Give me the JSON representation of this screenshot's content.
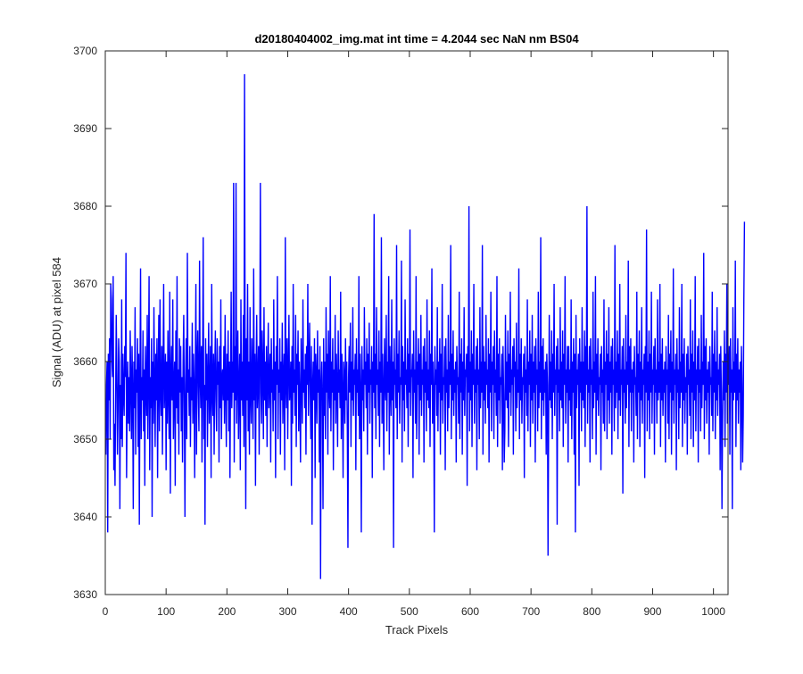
{
  "figure": {
    "background": "#ffffff"
  },
  "chart_data": {
    "type": "line",
    "title": "d20180404002_img.mat int time = 4.2044 sec  NaN nm BS04",
    "xlabel": "Track Pixels",
    "ylabel": "Signal (ADU) at pixel 584",
    "xlim": [
      0,
      1024
    ],
    "ylim": [
      3630,
      3700
    ],
    "xticks": [
      0,
      100,
      200,
      300,
      400,
      500,
      600,
      700,
      800,
      900,
      1000
    ],
    "yticks": [
      3630,
      3640,
      3650,
      3660,
      3670,
      3680,
      3690,
      3700
    ],
    "grid": false,
    "legend": "none",
    "series": [
      {
        "color": "#0000ff",
        "x_start": 1,
        "x_step": 1,
        "values": [
          3648,
          3657,
          3660,
          3638,
          3661,
          3655,
          3663,
          3650,
          3670,
          3668,
          3660,
          3658,
          3671,
          3646,
          3652,
          3644,
          3655,
          3666,
          3659,
          3648,
          3654,
          3663,
          3660,
          3641,
          3657,
          3650,
          3668,
          3649,
          3661,
          3656,
          3653,
          3662,
          3658,
          3674,
          3645,
          3655,
          3660,
          3652,
          3658,
          3651,
          3664,
          3657,
          3650,
          3662,
          3656,
          3641,
          3660,
          3654,
          3667,
          3648,
          3659,
          3656,
          3663,
          3649,
          3661,
          3639,
          3657,
          3672,
          3650,
          3658,
          3655,
          3664,
          3651,
          3659,
          3644,
          3662,
          3657,
          3653,
          3666,
          3650,
          3659,
          3671,
          3646,
          3658,
          3654,
          3663,
          3640,
          3660,
          3652,
          3667,
          3657,
          3649,
          3661,
          3655,
          3663,
          3645,
          3658,
          3666,
          3651,
          3668,
          3656,
          3653,
          3662,
          3648,
          3659,
          3670,
          3654,
          3657,
          3661,
          3646,
          3660,
          3652,
          3664,
          3656,
          3650,
          3669,
          3643,
          3658,
          3662,
          3655,
          3668,
          3650,
          3657,
          3660,
          3644,
          3664,
          3654,
          3671,
          3652,
          3659,
          3648,
          3663,
          3656,
          3662,
          3651,
          3658,
          3647,
          3660,
          3666,
          3654,
          3640,
          3657,
          3663,
          3650,
          3674,
          3656,
          3659,
          3653,
          3662,
          3649,
          3658,
          3655,
          3665,
          3652,
          3661,
          3657,
          3645,
          3659,
          3670,
          3648,
          3660,
          3664,
          3656,
          3651,
          3673,
          3658,
          3654,
          3662,
          3647,
          3659,
          3676,
          3650,
          3657,
          3639,
          3663,
          3655,
          3661,
          3649,
          3658,
          3665,
          3652,
          3657,
          3662,
          3645,
          3670,
          3656,
          3653,
          3661,
          3648,
          3659,
          3664,
          3655,
          3651,
          3663,
          3657,
          3660,
          3647,
          3662,
          3654,
          3668,
          3650,
          3658,
          3659,
          3655,
          3662,
          3652,
          3666,
          3657,
          3649,
          3661,
          3655,
          3664,
          3651,
          3660,
          3645,
          3658,
          3669,
          3654,
          3660,
          3656,
          3683,
          3647,
          3662,
          3655,
          3683,
          3652,
          3659,
          3664,
          3650,
          3657,
          3661,
          3646,
          3668,
          3655,
          3660,
          3653,
          3666,
          3649,
          3697,
          3658,
          3641,
          3663,
          3655,
          3670,
          3651,
          3660,
          3648,
          3667,
          3656,
          3652,
          3663,
          3658,
          3650,
          3672,
          3655,
          3661,
          3644,
          3659,
          3666,
          3654,
          3657,
          3662,
          3648,
          3660,
          3683,
          3656,
          3652,
          3664,
          3659,
          3650,
          3667,
          3655,
          3660,
          3653,
          3662,
          3649,
          3658,
          3665,
          3654,
          3658,
          3661,
          3647,
          3663,
          3656,
          3659,
          3651,
          3668,
          3655,
          3660,
          3645,
          3662,
          3657,
          3671,
          3650,
          3659,
          3656,
          3663,
          3648,
          3660,
          3655,
          3665,
          3652,
          3658,
          3661,
          3646,
          3676,
          3657,
          3654,
          3663,
          3650,
          3659,
          3666,
          3655,
          3657,
          3660,
          3644,
          3662,
          3652,
          3670,
          3656,
          3659,
          3653,
          3666,
          3649,
          3661,
          3657,
          3664,
          3651,
          3660,
          3655,
          3647,
          3663,
          3658,
          3652,
          3668,
          3656,
          3659,
          3654,
          3661,
          3648,
          3662,
          3657,
          3670,
          3653,
          3659,
          3665,
          3656,
          3650,
          3662,
          3639,
          3657,
          3660,
          3655,
          3663,
          3645,
          3661,
          3658,
          3652,
          3664,
          3656,
          3659,
          3647,
          3662,
          3632,
          3657,
          3660,
          3655,
          3641,
          3663,
          3653,
          3660,
          3650,
          3667,
          3656,
          3661,
          3648,
          3664,
          3657,
          3654,
          3671,
          3651,
          3660,
          3656,
          3663,
          3646,
          3659,
          3655,
          3666,
          3652,
          3661,
          3657,
          3649,
          3664,
          3656,
          3659,
          3654,
          3669,
          3650,
          3661,
          3656,
          3645,
          3660,
          3658,
          3652,
          3663,
          3655,
          3660,
          3651,
          3636,
          3658,
          3662,
          3656,
          3665,
          3649,
          3660,
          3655,
          3667,
          3653,
          3659,
          3657,
          3661,
          3646,
          3663,
          3656,
          3659,
          3653,
          3671,
          3650,
          3661,
          3656,
          3638,
          3662,
          3655,
          3659,
          3651,
          3667,
          3657,
          3660,
          3654,
          3663,
          3648,
          3661,
          3656,
          3665,
          3652,
          3659,
          3657,
          3662,
          3645,
          3660,
          3656,
          3679,
          3654,
          3661,
          3650,
          3667,
          3657,
          3659,
          3653,
          3664,
          3649,
          3660,
          3656,
          3676,
          3652,
          3661,
          3656,
          3646,
          3663,
          3658,
          3655,
          3666,
          3651,
          3660,
          3656,
          3671,
          3648,
          3662,
          3657,
          3653,
          3668,
          3655,
          3660,
          3636,
          3663,
          3657,
          3659,
          3654,
          3675,
          3650,
          3661,
          3656,
          3664,
          3652,
          3658,
          3657,
          3673,
          3647,
          3662,
          3655,
          3660,
          3651,
          3668,
          3657,
          3659,
          3654,
          3663,
          3649,
          3661,
          3656,
          3677,
          3653,
          3659,
          3658,
          3661,
          3645,
          3664,
          3656,
          3659,
          3652,
          3671,
          3650,
          3660,
          3657,
          3663,
          3648,
          3661,
          3655,
          3666,
          3653,
          3659,
          3657,
          3662,
          3647,
          3663,
          3656,
          3660,
          3651,
          3668,
          3655,
          3659,
          3654,
          3664,
          3649,
          3661,
          3657,
          3672,
          3652,
          3660,
          3656,
          3638,
          3662,
          3657,
          3659,
          3653,
          3667,
          3651,
          3660,
          3656,
          3663,
          3648,
          3661,
          3655,
          3670,
          3652,
          3658,
          3657,
          3662,
          3646,
          3663,
          3656,
          3659,
          3651,
          3666,
          3654,
          3660,
          3657,
          3675,
          3650,
          3661,
          3655,
          3664,
          3653,
          3659,
          3656,
          3660,
          3647,
          3662,
          3657,
          3658,
          3652,
          3669,
          3650,
          3661,
          3656,
          3663,
          3648,
          3660,
          3655,
          3667,
          3653,
          3659,
          3658,
          3661,
          3644,
          3662,
          3656,
          3680,
          3651,
          3660,
          3655,
          3664,
          3649,
          3661,
          3657,
          3670,
          3652,
          3659,
          3656,
          3662,
          3646,
          3663,
          3657,
          3659,
          3650,
          3667,
          3654,
          3660,
          3656,
          3675,
          3648,
          3662,
          3655,
          3660,
          3652,
          3666,
          3657,
          3659,
          3654,
          3663,
          3647,
          3661,
          3656,
          3669,
          3651,
          3660,
          3657,
          3662,
          3650,
          3664,
          3656,
          3659,
          3653,
          3671,
          3649,
          3661,
          3655,
          3663,
          3652,
          3658,
          3657,
          3661,
          3646,
          3662,
          3656,
          3647,
          3651,
          3666,
          3655,
          3660,
          3654,
          3664,
          3649,
          3661,
          3656,
          3669,
          3653,
          3659,
          3657,
          3662,
          3648,
          3663,
          3658,
          3660,
          3651,
          3665,
          3654,
          3659,
          3656,
          3672,
          3650,
          3661,
          3655,
          3663,
          3652,
          3658,
          3657,
          3661,
          3645,
          3662,
          3656,
          3659,
          3653,
          3668,
          3651,
          3660,
          3657,
          3664,
          3649,
          3661,
          3655,
          3666,
          3652,
          3660,
          3656,
          3662,
          3647,
          3663,
          3657,
          3659,
          3651,
          3669,
          3654,
          3660,
          3656,
          3676,
          3650,
          3662,
          3655,
          3663,
          3653,
          3659,
          3656,
          3660,
          3648,
          3661,
          3657,
          3635,
          3652,
          3666,
          3655,
          3660,
          3654,
          3664,
          3650,
          3661,
          3656,
          3670,
          3653,
          3659,
          3657,
          3662,
          3639,
          3663,
          3656,
          3659,
          3651,
          3667,
          3655,
          3660,
          3654,
          3664,
          3649,
          3661,
          3657,
          3671,
          3652,
          3659,
          3656,
          3662,
          3647,
          3662,
          3655,
          3659,
          3653,
          3668,
          3650,
          3660,
          3656,
          3663,
          3648,
          3661,
          3638,
          3666,
          3654,
          3659,
          3657,
          3661,
          3644,
          3663,
          3656,
          3660,
          3651,
          3667,
          3655,
          3660,
          3654,
          3664,
          3649,
          3662,
          3657,
          3680,
          3652,
          3659,
          3656,
          3662,
          3647,
          3663,
          3657,
          3659,
          3650,
          3669,
          3654,
          3660,
          3656,
          3671,
          3648,
          3661,
          3655,
          3663,
          3653,
          3658,
          3657,
          3661,
          3646,
          3662,
          3656,
          3659,
          3652,
          3668,
          3651,
          3660,
          3657,
          3664,
          3650,
          3661,
          3655,
          3667,
          3652,
          3660,
          3656,
          3662,
          3648,
          3663,
          3657,
          3659,
          3651,
          3675,
          3654,
          3660,
          3656,
          3664,
          3650,
          3661,
          3655,
          3670,
          3653,
          3659,
          3657,
          3662,
          3643,
          3663,
          3656,
          3659,
          3652,
          3666,
          3654,
          3660,
          3657,
          3673,
          3649,
          3662,
          3656,
          3663,
          3651,
          3659,
          3656,
          3660,
          3647,
          3662,
          3657,
          3658,
          3653,
          3669,
          3650,
          3661,
          3656,
          3664,
          3649,
          3660,
          3655,
          3667,
          3652,
          3659,
          3657,
          3661,
          3645,
          3662,
          3656,
          3677,
          3651,
          3660,
          3655,
          3664,
          3650,
          3661,
          3656,
          3669,
          3652,
          3659,
          3657,
          3662,
          3648,
          3663,
          3656,
          3659,
          3652,
          3668,
          3655,
          3660,
          3656,
          3670,
          3649,
          3661,
          3655,
          3663,
          3653,
          3659,
          3656,
          3660,
          3647,
          3662,
          3657,
          3659,
          3652,
          3666,
          3650,
          3661,
          3656,
          3664,
          3648,
          3660,
          3655,
          3672,
          3652,
          3659,
          3657,
          3661,
          3646,
          3663,
          3656,
          3659,
          3650,
          3667,
          3654,
          3660,
          3656,
          3670,
          3649,
          3661,
          3655,
          3663,
          3652,
          3658,
          3656,
          3661,
          3648,
          3662,
          3657,
          3659,
          3653,
          3668,
          3650,
          3661,
          3656,
          3664,
          3649,
          3660,
          3655,
          3671,
          3651,
          3659,
          3657,
          3662,
          3647,
          3663,
          3656,
          3659,
          3651,
          3666,
          3654,
          3660,
          3657,
          3674,
          3650,
          3662,
          3655,
          3663,
          3652,
          3659,
          3656,
          3660,
          3648,
          3662,
          3657,
          3658,
          3653,
          3669,
          3651,
          3661,
          3656,
          3664,
          3650,
          3660,
          3655,
          3667,
          3653,
          3659,
          3657,
          3661,
          3646,
          3662,
          3656,
          3641,
          3652,
          3660,
          3655,
          3664,
          3649,
          3661,
          3656,
          3670,
          3652,
          3659,
          3657,
          3662,
          3648,
          3663,
          3656,
          3659,
          3641,
          3667,
          3655,
          3660,
          3656,
          3673,
          3649,
          3661,
          3655,
          3663,
          3652,
          3659,
          3656,
          3660,
          3646,
          3662,
          3657,
          3647,
          3653,
          3668,
          3678
        ]
      }
    ]
  }
}
